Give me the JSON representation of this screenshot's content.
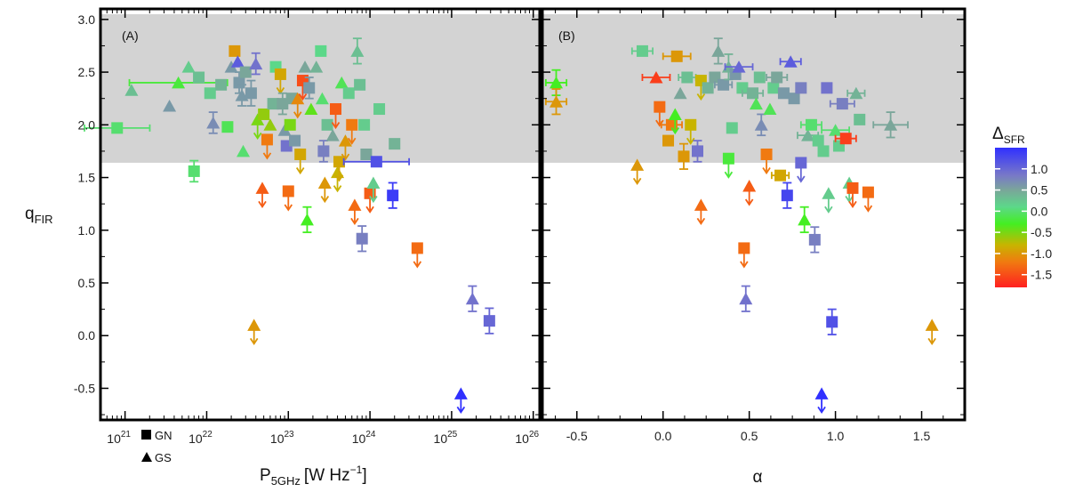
{
  "chart_data": [
    {
      "type": "scatter",
      "panel_label": "(A)",
      "xlabel_main": "P",
      "xlabel_sub": "5GHz",
      "xlabel_unit": "[W Hz",
      "xlabel_exp": "−1",
      "xlabel_close": "]",
      "ylabel_main": "q",
      "ylabel_sub": "FIR",
      "x_scale": "log",
      "xlim": [
        5e+20,
        1.2e+26
      ],
      "ylim": [
        -0.8,
        3.1
      ],
      "x_ticks": [
        1e+21,
        1e+22,
        1e+23,
        1e+24,
        1e+25,
        1e+26
      ],
      "x_tick_bases": [
        "10",
        "10",
        "10",
        "10",
        "10",
        "10"
      ],
      "x_tick_exps": [
        "21",
        "22",
        "23",
        "24",
        "25",
        "26"
      ],
      "y_ticks": [
        -0.5,
        0.0,
        0.5,
        1.0,
        1.5,
        2.0,
        2.5,
        3.0
      ],
      "y_tick_labels": [
        "-0.5",
        "0.0",
        "0.5",
        "1.0",
        "1.5",
        "2.0",
        "2.5",
        "3.0"
      ],
      "shaded_band": [
        1.64,
        3.05
      ],
      "shaded_color": "#d3d3d3",
      "legend": [
        {
          "marker": "square",
          "label": "GN"
        },
        {
          "marker": "triangle",
          "label": "GS"
        }
      ],
      "points": [
        {
          "x": 8e+20,
          "y": 1.97,
          "m": "s",
          "d": 0.0,
          "ex": 0.1
        },
        {
          "x": 1.2e+21,
          "y": 2.33,
          "m": "t",
          "d": 0.3
        },
        {
          "x": 3.5e+21,
          "y": 2.18,
          "m": "t",
          "d": 0.6
        },
        {
          "x": 4.5e+21,
          "y": 2.4,
          "m": "t",
          "d": -0.2,
          "ex": 0.15
        },
        {
          "x": 7e+21,
          "y": 1.56,
          "m": "s",
          "d": 0.0,
          "ey": 0.1
        },
        {
          "x": 6e+21,
          "y": 2.55,
          "m": "t",
          "d": 0.2
        },
        {
          "x": 8e+21,
          "y": 2.45,
          "m": "s",
          "d": 0.3
        },
        {
          "x": 1.1e+22,
          "y": 2.3,
          "m": "s",
          "d": 0.2
        },
        {
          "x": 1.2e+22,
          "y": 2.02,
          "m": "t",
          "d": 0.7,
          "ey": 0.1
        },
        {
          "x": 1.5e+22,
          "y": 2.38,
          "m": "s",
          "d": 0.4
        },
        {
          "x": 1.8e+22,
          "y": 1.98,
          "m": "s",
          "d": -0.1
        },
        {
          "x": 2e+22,
          "y": 2.55,
          "m": "t",
          "d": 0.6
        },
        {
          "x": 2.2e+22,
          "y": 2.7,
          "m": "s",
          "d": -1.0
        },
        {
          "x": 2.4e+22,
          "y": 2.6,
          "m": "t",
          "d": 1.1
        },
        {
          "x": 2.5e+22,
          "y": 2.4,
          "m": "s",
          "d": 0.6,
          "ey": 0.1
        },
        {
          "x": 2.7e+22,
          "y": 2.28,
          "m": "t",
          "d": 0.6,
          "ey": 0.1
        },
        {
          "x": 2.8e+22,
          "y": 1.75,
          "m": "t",
          "d": 0.0
        },
        {
          "x": 3e+22,
          "y": 2.5,
          "m": "s",
          "d": 0.5
        },
        {
          "x": 3.5e+22,
          "y": 2.3,
          "m": "s",
          "d": 0.6,
          "ey": 0.12
        },
        {
          "x": 4e+22,
          "y": 2.58,
          "m": "t",
          "d": 0.9,
          "ey": 0.1
        },
        {
          "x": 4.2e+22,
          "y": 2.05,
          "m": "t",
          "d": -0.5,
          "ul": true
        },
        {
          "x": 4.8e+22,
          "y": 1.4,
          "m": "t",
          "d": -1.4,
          "ul": true
        },
        {
          "x": 5e+22,
          "y": 2.1,
          "m": "s",
          "d": -0.6
        },
        {
          "x": 5.5e+22,
          "y": 1.86,
          "m": "s",
          "d": -1.2,
          "ul": true
        },
        {
          "x": 6e+22,
          "y": 2.0,
          "m": "t",
          "d": -0.6
        },
        {
          "x": 6.5e+22,
          "y": 2.2,
          "m": "s",
          "d": 0.4
        },
        {
          "x": 7e+22,
          "y": 2.55,
          "m": "s",
          "d": 0.1
        },
        {
          "x": 8e+22,
          "y": 2.48,
          "m": "s",
          "d": -0.9,
          "ul": true
        },
        {
          "x": 8.5e+22,
          "y": 2.2,
          "m": "s",
          "d": 0.5,
          "ey": 0.1
        },
        {
          "x": 9e+22,
          "y": 1.95,
          "m": "t",
          "d": 0.6
        },
        {
          "x": 9.5e+22,
          "y": 1.8,
          "m": "s",
          "d": 0.9
        },
        {
          "x": 1e+23,
          "y": 1.37,
          "m": "s",
          "d": -1.3,
          "ul": true
        },
        {
          "x": 1.05e+23,
          "y": 2.0,
          "m": "s",
          "d": -0.5
        },
        {
          "x": 1.1e+23,
          "y": 2.25,
          "m": "s",
          "d": 0.5
        },
        {
          "x": 1.2e+23,
          "y": 1.85,
          "m": "s",
          "d": 0.6
        },
        {
          "x": 1.3e+23,
          "y": 2.25,
          "m": "t",
          "d": -1.1,
          "ul": true
        },
        {
          "x": 1.4e+23,
          "y": 1.72,
          "m": "s",
          "d": -0.9,
          "ul": true
        },
        {
          "x": 1.5e+23,
          "y": 2.42,
          "m": "s",
          "d": -1.5,
          "ul": true
        },
        {
          "x": 1.6e+23,
          "y": 2.55,
          "m": "t",
          "d": 0.5
        },
        {
          "x": 1.7e+23,
          "y": 1.1,
          "m": "t",
          "d": -0.3,
          "ey": 0.12
        },
        {
          "x": 1.8e+23,
          "y": 2.35,
          "m": "s",
          "d": 0.6,
          "ey": 0.1
        },
        {
          "x": 1.9e+23,
          "y": 2.15,
          "m": "t",
          "d": -0.4
        },
        {
          "x": 2.2e+23,
          "y": 2.55,
          "m": "t",
          "d": 0.4
        },
        {
          "x": 2.5e+23,
          "y": 2.7,
          "m": "s",
          "d": 0.1
        },
        {
          "x": 2.6e+23,
          "y": 2.25,
          "m": "t",
          "d": 0.0
        },
        {
          "x": 2.7e+23,
          "y": 1.75,
          "m": "s",
          "d": 0.8,
          "ey": 0.1
        },
        {
          "x": 2.8e+23,
          "y": 1.45,
          "m": "t",
          "d": -1.0,
          "ul": true
        },
        {
          "x": 3e+23,
          "y": 2.0,
          "m": "s",
          "d": 0.3
        },
        {
          "x": 3.5e+23,
          "y": 1.9,
          "m": "t",
          "d": 0.5
        },
        {
          "x": 3.8e+23,
          "y": 2.15,
          "m": "s",
          "d": -1.4,
          "ul": true
        },
        {
          "x": 4e+23,
          "y": 1.55,
          "m": "t",
          "d": -0.8,
          "ul": true
        },
        {
          "x": 4.2e+23,
          "y": 1.65,
          "m": "s",
          "d": -0.9,
          "ul": true
        },
        {
          "x": 4.5e+23,
          "y": 2.4,
          "m": "t",
          "d": -0.1
        },
        {
          "x": 5e+23,
          "y": 1.85,
          "m": "t",
          "d": -1.0,
          "ul": true
        },
        {
          "x": 5.5e+23,
          "y": 2.3,
          "m": "s",
          "d": 0.2
        },
        {
          "x": 6e+23,
          "y": 2.0,
          "m": "s",
          "d": -1.2,
          "ul": true
        },
        {
          "x": 6.5e+23,
          "y": 1.24,
          "m": "t",
          "d": -1.3,
          "ul": true
        },
        {
          "x": 7e+23,
          "y": 2.7,
          "m": "t",
          "d": 0.3,
          "ey": 0.12
        },
        {
          "x": 7.5e+23,
          "y": 2.38,
          "m": "s",
          "d": 0.3
        },
        {
          "x": 8e+23,
          "y": 0.92,
          "m": "s",
          "d": 0.8,
          "ey": 0.12
        },
        {
          "x": 8.5e+23,
          "y": 2.0,
          "m": "s",
          "d": 0.2
        },
        {
          "x": 9e+23,
          "y": 1.72,
          "m": "s",
          "d": 0.5
        },
        {
          "x": 1e+24,
          "y": 1.35,
          "m": "s",
          "d": -1.4,
          "ul": true
        },
        {
          "x": 1.1e+24,
          "y": 1.45,
          "m": "t",
          "d": 0.2,
          "ul": true
        },
        {
          "x": 1.2e+24,
          "y": 1.65,
          "m": "s",
          "d": 1.2,
          "ex": 0.1
        },
        {
          "x": 1.3e+24,
          "y": 2.15,
          "m": "s",
          "d": 0.2
        },
        {
          "x": 1.9e+24,
          "y": 1.33,
          "m": "s",
          "d": 1.4,
          "ey": 0.12
        },
        {
          "x": 2e+24,
          "y": 1.82,
          "m": "s",
          "d": 0.4
        },
        {
          "x": 3.8e+24,
          "y": 0.83,
          "m": "s",
          "d": -1.3,
          "ul": true
        },
        {
          "x": 1.3e+25,
          "y": -0.55,
          "m": "t",
          "d": 1.5,
          "ul": true
        },
        {
          "x": 1.8e+25,
          "y": 0.35,
          "m": "t",
          "d": 0.9,
          "ey": 0.12
        },
        {
          "x": 2.9e+25,
          "y": 0.14,
          "m": "s",
          "d": 1.0,
          "ey": 0.12
        },
        {
          "x": 3.8e+22,
          "y": 0.1,
          "m": "t",
          "d": -1.0,
          "ul": true
        }
      ]
    },
    {
      "type": "scatter",
      "panel_label": "(B)",
      "xlabel": "α",
      "xlim": [
        -0.7,
        1.75
      ],
      "ylim": [
        -0.8,
        3.1
      ],
      "x_ticks": [
        -0.5,
        0.0,
        0.5,
        1.0,
        1.5
      ],
      "x_tick_labels": [
        "-0.5",
        "0.0",
        "0.5",
        "1.0",
        "1.5"
      ],
      "y_ticks": [
        -0.5,
        0.0,
        0.5,
        1.0,
        1.5,
        2.0,
        2.5,
        3.0
      ],
      "shaded_band": [
        1.64,
        3.05
      ],
      "shaded_color": "#d3d3d3",
      "points": [
        {
          "x": -0.62,
          "y": 2.4,
          "m": "t",
          "d": -0.3,
          "ex": 0.06,
          "ey": 0.12
        },
        {
          "x": -0.62,
          "y": 2.22,
          "m": "t",
          "d": -1.0,
          "ex": 0.06,
          "ey": 0.12
        },
        {
          "x": -0.15,
          "y": 1.62,
          "m": "t",
          "d": -1.0,
          "ul": true
        },
        {
          "x": -0.12,
          "y": 2.7,
          "m": "s",
          "d": 0.2,
          "ex": 0.06
        },
        {
          "x": -0.04,
          "y": 2.45,
          "m": "t",
          "d": -1.6,
          "ex": 0.08
        },
        {
          "x": -0.02,
          "y": 2.17,
          "m": "s",
          "d": -1.3,
          "ul": true
        },
        {
          "x": 0.03,
          "y": 1.85,
          "m": "s",
          "d": -1.0
        },
        {
          "x": 0.05,
          "y": 2.0,
          "m": "s",
          "d": -1.2,
          "ex": 0.06
        },
        {
          "x": 0.07,
          "y": 2.1,
          "m": "t",
          "d": -0.3,
          "ul": true
        },
        {
          "x": 0.08,
          "y": 2.65,
          "m": "s",
          "d": -1.0,
          "ex": 0.08
        },
        {
          "x": 0.1,
          "y": 2.3,
          "m": "t",
          "d": 0.5
        },
        {
          "x": 0.12,
          "y": 1.7,
          "m": "s",
          "d": -1.0,
          "ey": 0.12
        },
        {
          "x": 0.14,
          "y": 2.45,
          "m": "s",
          "d": 0.3,
          "ex": 0.05
        },
        {
          "x": 0.16,
          "y": 2.0,
          "m": "s",
          "d": -0.8,
          "ul": true
        },
        {
          "x": 0.2,
          "y": 1.75,
          "m": "s",
          "d": 0.9,
          "ey": 0.1
        },
        {
          "x": 0.22,
          "y": 1.24,
          "m": "t",
          "d": -1.3,
          "ul": true
        },
        {
          "x": 0.22,
          "y": 2.42,
          "m": "s",
          "d": -0.8,
          "ul": true
        },
        {
          "x": 0.26,
          "y": 2.35,
          "m": "s",
          "d": 0.4
        },
        {
          "x": 0.3,
          "y": 2.45,
          "m": "s",
          "d": 0.5
        },
        {
          "x": 0.32,
          "y": 2.7,
          "m": "t",
          "d": 0.5,
          "ey": 0.12
        },
        {
          "x": 0.35,
          "y": 2.38,
          "m": "s",
          "d": 0.6,
          "ex": 0.05
        },
        {
          "x": 0.38,
          "y": 1.68,
          "m": "s",
          "d": -0.2,
          "ul": true
        },
        {
          "x": 0.38,
          "y": 2.55,
          "m": "t",
          "d": 0.4,
          "ey": 0.12
        },
        {
          "x": 0.4,
          "y": 1.97,
          "m": "s",
          "d": 0.2
        },
        {
          "x": 0.42,
          "y": 2.48,
          "m": "s",
          "d": 0.6
        },
        {
          "x": 0.44,
          "y": 2.55,
          "m": "t",
          "d": 1.0,
          "ex": 0.08
        },
        {
          "x": 0.46,
          "y": 2.35,
          "m": "s",
          "d": 0.2
        },
        {
          "x": 0.47,
          "y": 0.83,
          "m": "s",
          "d": -1.3,
          "ul": true
        },
        {
          "x": 0.48,
          "y": 0.35,
          "m": "t",
          "d": 0.9,
          "ey": 0.12
        },
        {
          "x": 0.5,
          "y": 1.42,
          "m": "t",
          "d": -1.4,
          "ul": true
        },
        {
          "x": 0.52,
          "y": 2.3,
          "m": "s",
          "d": 0.4,
          "ex": 0.06
        },
        {
          "x": 0.54,
          "y": 2.2,
          "m": "t",
          "d": -0.1
        },
        {
          "x": 0.56,
          "y": 2.45,
          "m": "s",
          "d": 0.3
        },
        {
          "x": 0.57,
          "y": 2.0,
          "m": "t",
          "d": 0.7,
          "ey": 0.1
        },
        {
          "x": 0.6,
          "y": 1.72,
          "m": "s",
          "d": -1.2,
          "ul": true
        },
        {
          "x": 0.62,
          "y": 2.15,
          "m": "t",
          "d": -0.1
        },
        {
          "x": 0.64,
          "y": 2.35,
          "m": "s",
          "d": 0.2
        },
        {
          "x": 0.66,
          "y": 2.45,
          "m": "s",
          "d": 0.5,
          "ex": 0.06
        },
        {
          "x": 0.68,
          "y": 1.52,
          "m": "s",
          "d": -0.9,
          "ex": 0.05
        },
        {
          "x": 0.7,
          "y": 2.3,
          "m": "s",
          "d": 0.6
        },
        {
          "x": 0.72,
          "y": 1.33,
          "m": "s",
          "d": 1.3,
          "ey": 0.12
        },
        {
          "x": 0.74,
          "y": 2.6,
          "m": "t",
          "d": 1.1,
          "ex": 0.06
        },
        {
          "x": 0.76,
          "y": 2.25,
          "m": "s",
          "d": 0.6
        },
        {
          "x": 0.8,
          "y": 1.64,
          "m": "s",
          "d": 1.0,
          "ul": true
        },
        {
          "x": 0.8,
          "y": 2.35,
          "m": "s",
          "d": 0.8
        },
        {
          "x": 0.82,
          "y": 1.1,
          "m": "t",
          "d": -0.3,
          "ey": 0.12
        },
        {
          "x": 0.84,
          "y": 1.9,
          "m": "t",
          "d": 0.4,
          "ex": 0.06
        },
        {
          "x": 0.86,
          "y": 2.0,
          "m": "s",
          "d": 0.0,
          "ex": 0.06
        },
        {
          "x": 0.88,
          "y": 0.91,
          "m": "s",
          "d": 0.8,
          "ey": 0.12
        },
        {
          "x": 0.9,
          "y": 1.85,
          "m": "s",
          "d": 0.2
        },
        {
          "x": 0.92,
          "y": -0.55,
          "m": "t",
          "d": 1.5,
          "ul": true
        },
        {
          "x": 0.93,
          "y": 1.75,
          "m": "s",
          "d": 0.2
        },
        {
          "x": 0.95,
          "y": 2.35,
          "m": "s",
          "d": 0.9
        },
        {
          "x": 0.96,
          "y": 1.35,
          "m": "t",
          "d": 0.2,
          "ul": true
        },
        {
          "x": 0.98,
          "y": 0.13,
          "m": "s",
          "d": 1.2,
          "ey": 0.12
        },
        {
          "x": 1.0,
          "y": 1.95,
          "m": "t",
          "d": 0.0,
          "ex": 0.08
        },
        {
          "x": 1.02,
          "y": 1.8,
          "m": "s",
          "d": 0.2
        },
        {
          "x": 1.04,
          "y": 2.2,
          "m": "s",
          "d": 0.8,
          "ex": 0.07
        },
        {
          "x": 1.06,
          "y": 1.87,
          "m": "s",
          "d": -1.6,
          "ex": 0.06
        },
        {
          "x": 1.08,
          "y": 1.45,
          "m": "t",
          "d": 0.2,
          "ul": true
        },
        {
          "x": 1.1,
          "y": 1.4,
          "m": "s",
          "d": -1.4,
          "ul": true
        },
        {
          "x": 1.12,
          "y": 2.3,
          "m": "t",
          "d": 0.4,
          "ex": 0.05
        },
        {
          "x": 1.14,
          "y": 2.05,
          "m": "s",
          "d": 0.3
        },
        {
          "x": 1.19,
          "y": 1.36,
          "m": "s",
          "d": -1.3,
          "ul": true
        },
        {
          "x": 1.32,
          "y": 2.0,
          "m": "t",
          "d": 0.5,
          "ex": 0.1,
          "ey": 0.12
        },
        {
          "x": 1.56,
          "y": 0.1,
          "m": "t",
          "d": -1.0,
          "ul": true
        }
      ]
    }
  ],
  "colorbar": {
    "title_main": "Δ",
    "title_sub": "SFR",
    "min": -1.8,
    "max": 1.5,
    "ticks": [
      1.0,
      0.5,
      0.0,
      -0.5,
      -1.0,
      -1.5
    ],
    "tick_labels": [
      "1.0",
      "0.5",
      "0.0",
      "-0.5",
      "-1.0",
      "-1.5"
    ],
    "stops": [
      {
        "v": -1.8,
        "c": "#ff2020"
      },
      {
        "v": -1.2,
        "c": "#f07a10"
      },
      {
        "v": -0.8,
        "c": "#c8b400"
      },
      {
        "v": -0.3,
        "c": "#44ee22"
      },
      {
        "v": 0.1,
        "c": "#5cd889"
      },
      {
        "v": 0.5,
        "c": "#7aa69a"
      },
      {
        "v": 0.85,
        "c": "#7878c8"
      },
      {
        "v": 1.5,
        "c": "#3030ff"
      }
    ]
  }
}
